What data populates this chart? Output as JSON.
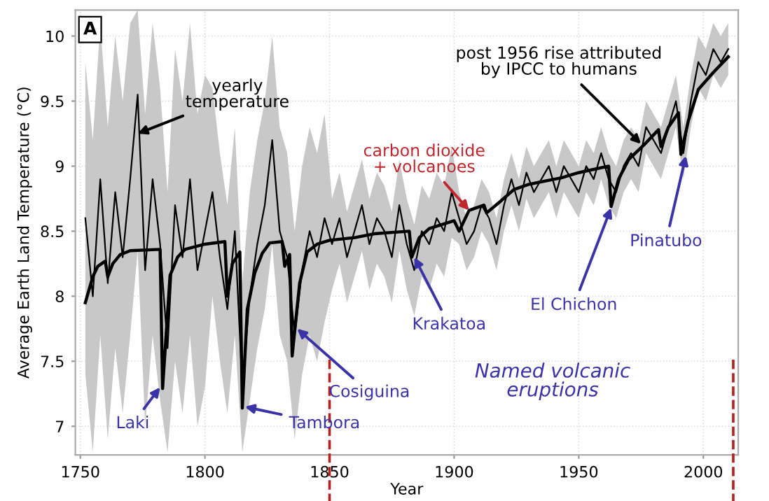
{
  "chart_data": {
    "type": "line",
    "xlabel": "Year",
    "ylabel": "Average Earth Land Temperature (°C)",
    "xlim": [
      1748,
      2014
    ],
    "ylim": [
      6.78,
      10.2
    ],
    "xticks": [
      1750,
      1800,
      1850,
      1900,
      1950,
      2000
    ],
    "yticks": [
      7,
      7.5,
      8,
      8.5,
      9,
      9.5,
      10
    ],
    "grid": true,
    "series": [
      {
        "color": "#000000",
        "x": [
          1752,
          1755,
          1758,
          1761,
          1764,
          1767,
          1770,
          1773,
          1776,
          1779,
          1782,
          1785,
          1788,
          1791,
          1794,
          1797,
          1800,
          1803,
          1806,
          1809,
          1812,
          1815,
          1818,
          1821,
          1824,
          1827,
          1830,
          1833,
          1836,
          1839,
          1842,
          1845,
          1848,
          1851,
          1854,
          1857,
          1860,
          1863,
          1866,
          1869,
          1872,
          1875,
          1878,
          1881,
          1884,
          1887,
          1890,
          1893,
          1896,
          1899,
          1902,
          1905,
          1908,
          1911,
          1914,
          1917,
          1920,
          1923,
          1926,
          1929,
          1932,
          1935,
          1938,
          1941,
          1944,
          1947,
          1950,
          1953,
          1956,
          1959,
          1962,
          1965,
          1968,
          1971,
          1974,
          1977,
          1980,
          1983,
          1986,
          1989,
          1992,
          1995,
          1998,
          2001,
          2004,
          2007,
          2010
        ],
        "values": [
          8.6,
          8.0,
          8.9,
          8.1,
          8.8,
          8.3,
          8.9,
          9.55,
          8.2,
          8.9,
          8.4,
          7.6,
          8.7,
          8.3,
          8.9,
          8.2,
          8.5,
          8.8,
          8.3,
          7.9,
          8.5,
          7.3,
          8.0,
          8.4,
          8.7,
          9.2,
          8.5,
          8.3,
          7.7,
          8.2,
          8.5,
          8.3,
          8.6,
          8.4,
          8.6,
          8.3,
          8.5,
          8.7,
          8.4,
          8.6,
          8.5,
          8.3,
          8.7,
          8.4,
          8.2,
          8.5,
          8.4,
          8.6,
          8.5,
          8.8,
          8.6,
          8.4,
          8.5,
          8.7,
          8.6,
          8.4,
          8.7,
          8.9,
          8.7,
          8.95,
          8.8,
          8.9,
          9.0,
          8.8,
          9.0,
          8.9,
          8.8,
          9.0,
          8.9,
          9.1,
          8.9,
          8.8,
          9.0,
          9.1,
          9.0,
          9.3,
          9.2,
          9.1,
          9.3,
          9.5,
          9.1,
          9.5,
          9.8,
          9.7,
          9.9,
          9.8,
          9.9
        ],
        "lower": [
          7.4,
          6.8,
          7.7,
          6.9,
          7.6,
          7.1,
          7.7,
          8.35,
          7.0,
          7.7,
          7.2,
          6.8,
          7.5,
          7.1,
          7.7,
          7.0,
          7.3,
          8.0,
          7.5,
          7.1,
          7.7,
          6.8,
          7.2,
          7.6,
          7.9,
          8.4,
          7.7,
          7.5,
          6.9,
          7.4,
          7.7,
          7.5,
          7.8,
          8.05,
          8.25,
          7.95,
          8.15,
          8.35,
          8.05,
          8.25,
          8.15,
          7.95,
          8.35,
          8.05,
          7.85,
          8.15,
          8.05,
          8.25,
          8.15,
          8.45,
          8.4,
          8.2,
          8.3,
          8.5,
          8.4,
          8.2,
          8.5,
          8.7,
          8.5,
          8.75,
          8.6,
          8.7,
          8.8,
          8.6,
          8.8,
          8.7,
          8.6,
          8.8,
          8.7,
          8.9,
          8.7,
          8.6,
          8.8,
          8.9,
          8.8,
          9.1,
          9.0,
          8.9,
          9.1,
          9.3,
          8.9,
          9.3,
          9.6,
          9.5,
          9.7,
          9.6,
          9.7
        ],
        "upper": [
          9.8,
          9.2,
          10.1,
          9.3,
          10.0,
          9.5,
          10.1,
          10.2,
          9.4,
          10.1,
          9.6,
          8.8,
          9.9,
          9.5,
          10.1,
          9.4,
          9.7,
          9.6,
          9.1,
          8.7,
          9.3,
          8.1,
          8.8,
          9.2,
          9.5,
          10.0,
          9.3,
          9.1,
          8.5,
          9.0,
          9.3,
          9.1,
          9.4,
          8.75,
          8.95,
          8.65,
          8.85,
          9.05,
          8.75,
          8.95,
          8.85,
          8.65,
          9.05,
          8.75,
          8.55,
          8.85,
          8.75,
          8.95,
          8.85,
          9.15,
          8.8,
          8.6,
          8.7,
          8.9,
          8.8,
          8.6,
          8.9,
          9.1,
          8.9,
          9.15,
          9.0,
          9.1,
          9.2,
          9.0,
          9.2,
          9.1,
          9.0,
          9.2,
          9.1,
          9.3,
          9.1,
          9.0,
          9.2,
          9.3,
          9.2,
          9.5,
          9.4,
          9.3,
          9.5,
          9.7,
          9.3,
          9.7,
          10.0,
          9.9,
          10.1,
          10.0,
          10.1
        ]
      },
      {
        "color": "#000000",
        "x": [
          1752,
          1755,
          1757,
          1760,
          1761,
          1763,
          1766,
          1770,
          1782,
          1783,
          1786,
          1789,
          1792,
          1800,
          1808,
          1809,
          1811,
          1814,
          1815,
          1817,
          1820,
          1823,
          1826,
          1831,
          1832,
          1834,
          1835,
          1838,
          1841,
          1845,
          1850,
          1860,
          1868,
          1882,
          1883,
          1886,
          1890,
          1900,
          1902,
          1906,
          1912,
          1913,
          1918,
          1924,
          1930,
          1943,
          1950,
          1962,
          1963,
          1966,
          1970,
          1976,
          1982,
          1983,
          1986,
          1990,
          1991,
          1994,
          1998,
          2004,
          2010
        ],
        "values": [
          7.95,
          8.15,
          8.23,
          8.27,
          8.15,
          8.25,
          8.32,
          8.35,
          8.36,
          7.29,
          8.16,
          8.3,
          8.36,
          8.4,
          8.42,
          8.0,
          8.25,
          8.34,
          7.14,
          7.9,
          8.18,
          8.33,
          8.41,
          8.42,
          8.23,
          8.32,
          7.54,
          8.1,
          8.34,
          8.4,
          8.43,
          8.45,
          8.48,
          8.5,
          8.3,
          8.45,
          8.52,
          8.58,
          8.5,
          8.66,
          8.7,
          8.64,
          8.72,
          8.82,
          8.86,
          8.91,
          8.95,
          9.0,
          8.69,
          8.9,
          9.05,
          9.16,
          9.28,
          9.15,
          9.3,
          9.41,
          9.09,
          9.35,
          9.59,
          9.72,
          9.84
        ]
      }
    ],
    "ref_lines": [
      {
        "axis": "x",
        "value": 1850,
        "color": "#b22222",
        "line_style": "dashed"
      },
      {
        "axis": "x",
        "value": 2012,
        "color": "#b22222",
        "line_style": "dashed"
      }
    ],
    "annotations": [
      "A",
      {
        "text": "yearly\ntemperature",
        "x": 1773,
        "y": 9.25
      },
      {
        "text": "carbon dioxide\n+ volcanoes",
        "x": 1906,
        "y": 8.66
      },
      {
        "text": "post 1956 rise attributed\nby IPCC to humans",
        "x": 1975,
        "y": 9.17
      },
      {
        "text": "Laki",
        "x": 1782,
        "y": 7.3
      },
      {
        "text": "Tambora",
        "x": 1816,
        "y": 7.15
      },
      {
        "text": "Cosiguina",
        "x": 1837,
        "y": 7.75
      },
      {
        "text": "Krakatoa",
        "x": 1884,
        "y": 8.3
      },
      {
        "text": "El Chichon",
        "x": 1963,
        "y": 8.68
      },
      {
        "text": "Pinatubo",
        "x": 1993,
        "y": 9.08
      },
      "Named volcanic\neruptions"
    ]
  }
}
